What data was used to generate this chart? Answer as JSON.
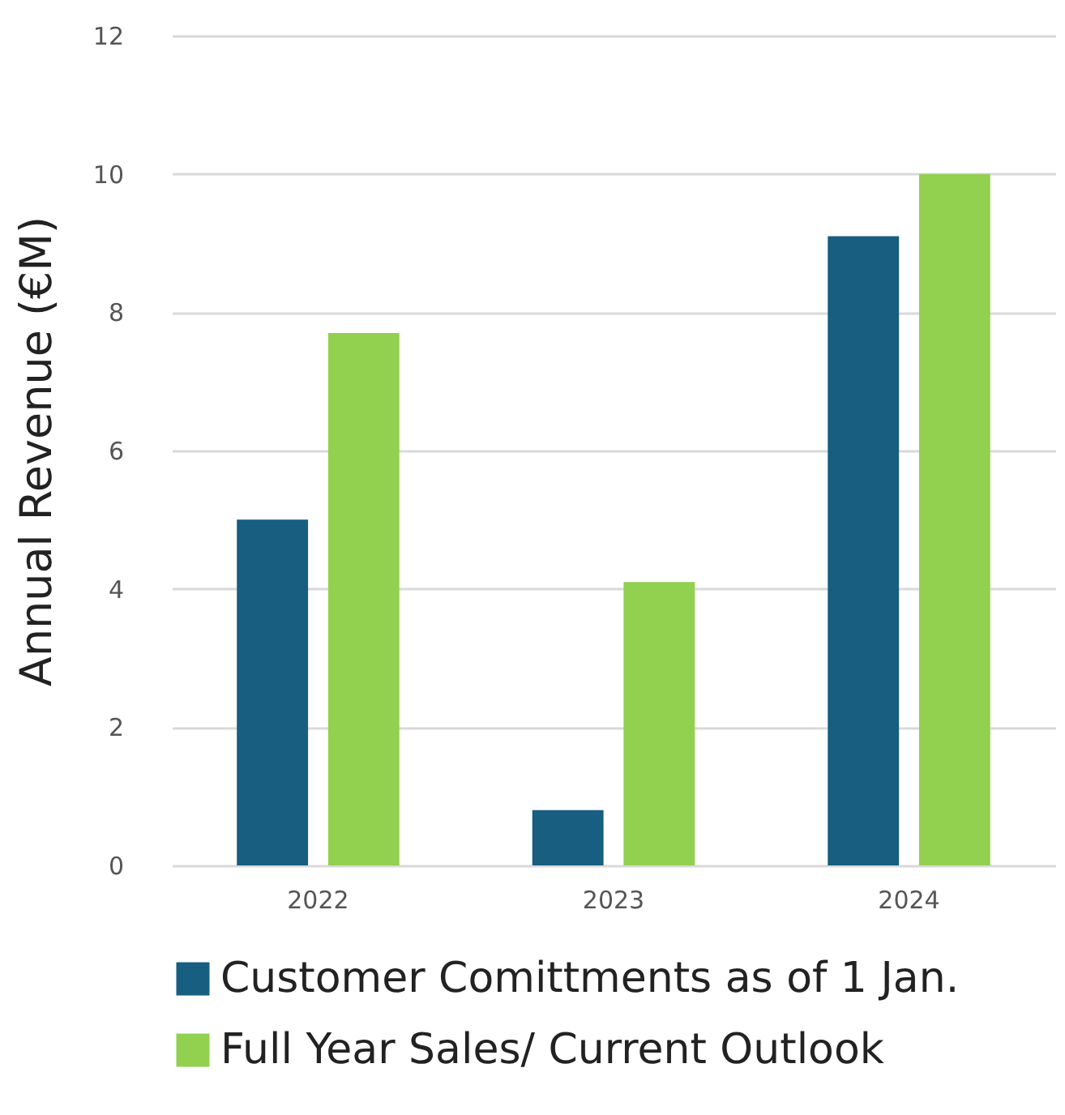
{
  "chart_data": {
    "type": "bar",
    "ylabel": "Annual Revenue (€M)",
    "categories": [
      "2022",
      "2023",
      "2024"
    ],
    "series": [
      {
        "name": "Customer Comittments as of 1 Jan.",
        "color": "#175e80",
        "values": [
          5.0,
          0.8,
          9.1
        ]
      },
      {
        "name": "Full Year Sales/ Current Outlook",
        "color": "#92d050",
        "values": [
          7.7,
          4.1,
          10.0
        ]
      }
    ],
    "ylim": [
      0,
      12
    ],
    "yticks": [
      0,
      2,
      4,
      6,
      8,
      10,
      12
    ],
    "grid": "y",
    "legend": "bottom"
  }
}
